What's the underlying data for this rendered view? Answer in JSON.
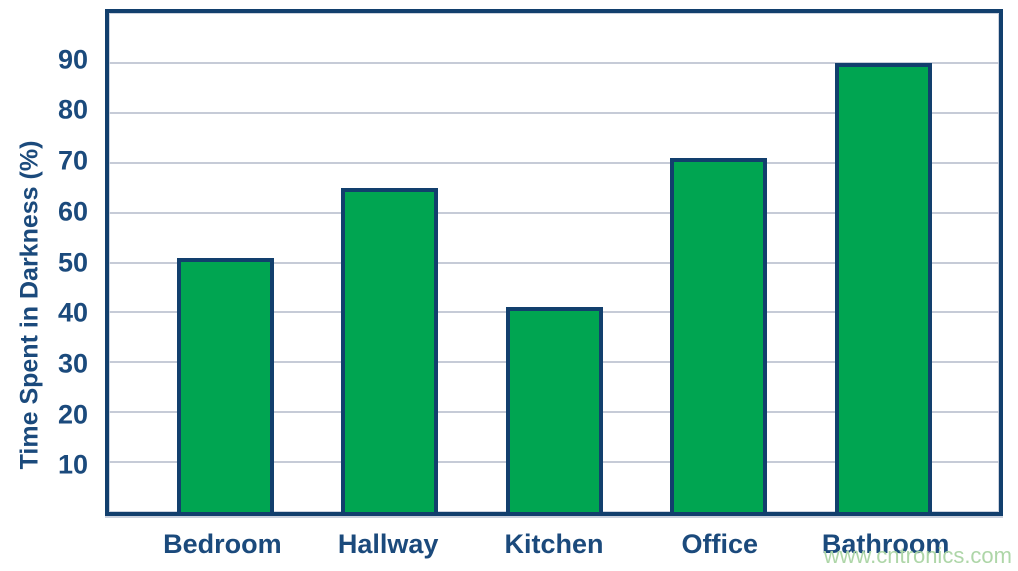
{
  "watermark": "www.cntronics.com",
  "colors": {
    "bar_fill": "#00a551",
    "bar_border": "#123f6d",
    "axis_text": "#1b4a7c",
    "gridline": "#c6cbd7",
    "watermark": "#aed6a8",
    "background": "#ffffff"
  },
  "chart_data": {
    "type": "bar",
    "categories": [
      "Bedroom",
      "Hallway",
      "Kitchen",
      "Office",
      "Bathroom"
    ],
    "values": [
      51,
      65,
      41,
      71,
      90
    ],
    "title": "",
    "xlabel": "",
    "ylabel": "Time Spent in Darkness (%)",
    "ylim": [
      0,
      100
    ],
    "yticks": [
      10,
      20,
      30,
      40,
      50,
      60,
      70,
      80,
      90
    ],
    "grid": true,
    "legend": false,
    "bar_unit": "percent"
  }
}
